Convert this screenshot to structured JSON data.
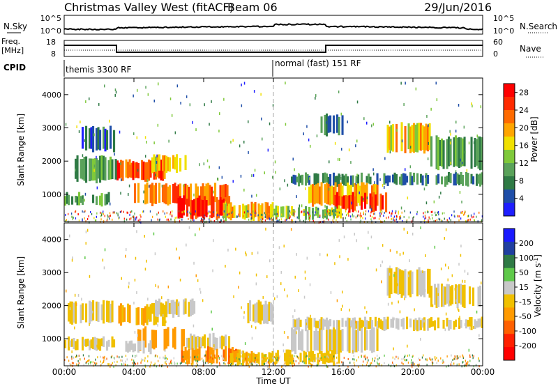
{
  "header": {
    "title": "Christmas Valley West (fitACF)",
    "beam": "Beam 06",
    "date": "29/Jun/2016"
  },
  "nsky_panel": {
    "left_label": "N.Sky",
    "right_label": "N.Search",
    "left_ticks": [
      "10^5",
      "10^0"
    ],
    "right_ticks": [
      "10^5",
      "10^0"
    ]
  },
  "freq_panel": {
    "left_label_1": "Freq.",
    "left_label_2": "[MHz]",
    "right_label": "Nave",
    "left_ticks": [
      "18",
      "8"
    ],
    "right_ticks": [
      "60",
      "0"
    ]
  },
  "cpid": {
    "label": "CPID",
    "segments": [
      {
        "start": 0,
        "end": 12,
        "text": "themis 3300 RF"
      },
      {
        "start": 12,
        "end": 24,
        "text": "normal (fast) 151 RF"
      }
    ]
  },
  "x_axis": {
    "label": "Time UT",
    "ticks": [
      "00:00",
      "04:00",
      "08:00",
      "12:00",
      "16:00",
      "20:00",
      "00:00"
    ]
  },
  "colors": {
    "power": [
      "#1e1eff",
      "#1f4ea8",
      "#2f7a45",
      "#5aa25a",
      "#7fc93a",
      "#f0e000",
      "#ffa500",
      "#ff6a00",
      "#ff2a00",
      "#ff0000"
    ],
    "velocity": [
      "#1a1aff",
      "#203fa0",
      "#2f7a45",
      "#5fc94a",
      "#c8c8c8",
      "#f0c000",
      "#ff9a00",
      "#ff6000",
      "#ff2000",
      "#ff0000"
    ],
    "axis": "#000000",
    "midline": "#aaaaaa"
  },
  "chart_data": [
    {
      "type": "heatmap",
      "title": "",
      "xlabel": "Time UT",
      "ylabel": "Slant Range [km]",
      "xlim": [
        0,
        24
      ],
      "ylim": [
        180,
        4500
      ],
      "yticks": [
        "1000",
        "2000",
        "3000",
        "4000"
      ],
      "colorbar": {
        "label": "Power [dB]",
        "ticks": [
          "4",
          "8",
          "12",
          "16",
          "20",
          "24",
          "28"
        ],
        "range": [
          0,
          30
        ]
      },
      "regions": [
        {
          "t0": 3.0,
          "t1": 5.8,
          "r0": 1450,
          "r1": 2000,
          "value": 24
        },
        {
          "t0": 5.0,
          "t1": 7.0,
          "r0": 1700,
          "r1": 2150,
          "value": 18
        },
        {
          "t0": 0.5,
          "t1": 3.0,
          "r0": 1400,
          "r1": 2100,
          "value": 10
        },
        {
          "t0": 4.0,
          "t1": 9.5,
          "r0": 700,
          "r1": 1300,
          "value": 22
        },
        {
          "t0": 6.5,
          "t1": 9.5,
          "r0": 300,
          "r1": 900,
          "value": 26
        },
        {
          "t0": 9.0,
          "t1": 12.0,
          "r0": 250,
          "r1": 700,
          "value": 18
        },
        {
          "t0": 13.0,
          "t1": 24.0,
          "r0": 1300,
          "r1": 1600,
          "value": 8
        },
        {
          "t0": 14.0,
          "t1": 18.0,
          "r0": 700,
          "r1": 1300,
          "value": 20
        },
        {
          "t0": 15.5,
          "t1": 18.5,
          "r0": 500,
          "r1": 1000,
          "value": 26
        },
        {
          "t0": 12.0,
          "t1": 16.0,
          "r0": 300,
          "r1": 600,
          "value": 14
        },
        {
          "t0": 18.5,
          "t1": 21.0,
          "r0": 2300,
          "r1": 3100,
          "value": 18
        },
        {
          "t0": 21.0,
          "t1": 24.0,
          "r0": 1800,
          "r1": 2700,
          "value": 10
        },
        {
          "t0": 0.0,
          "t1": 3.0,
          "r0": 700,
          "r1": 1000,
          "value": 10
        },
        {
          "t0": 1.0,
          "t1": 3.0,
          "r0": 2300,
          "r1": 3000,
          "value": 6
        },
        {
          "t0": 14.5,
          "t1": 16.0,
          "r0": 2800,
          "r1": 3400,
          "value": 8
        }
      ]
    },
    {
      "type": "heatmap",
      "title": "",
      "xlabel": "Time UT",
      "ylabel": "Slant Range [km]",
      "xlim": [
        0,
        24
      ],
      "ylim": [
        180,
        4500
      ],
      "yticks": [
        "1000",
        "2000",
        "3000",
        "4000"
      ],
      "colorbar": {
        "label": "Velocity [m s^-1]",
        "ticks": [
          "200",
          "100",
          "50",
          "15",
          "-15",
          "-50",
          "-100",
          "-200"
        ],
        "range": [
          -250,
          250
        ]
      },
      "regions": [
        {
          "t0": 3.0,
          "t1": 5.8,
          "r0": 1450,
          "r1": 2000,
          "value": -40
        },
        {
          "t0": 5.0,
          "t1": 7.5,
          "r0": 1700,
          "r1": 2150,
          "value": 0
        },
        {
          "t0": 0.2,
          "t1": 3.0,
          "r0": 1500,
          "r1": 2100,
          "value": 0
        },
        {
          "t0": 4.0,
          "t1": 7.0,
          "r0": 700,
          "r1": 1300,
          "value": -70
        },
        {
          "t0": 3.5,
          "t1": 5.0,
          "r0": 600,
          "r1": 900,
          "value": 30
        },
        {
          "t0": 7.0,
          "t1": 9.5,
          "r0": 700,
          "r1": 1100,
          "value": 0
        },
        {
          "t0": 6.5,
          "t1": 10.0,
          "r0": 300,
          "r1": 700,
          "value": -90
        },
        {
          "t0": 9.5,
          "t1": 12.0,
          "r0": 250,
          "r1": 600,
          "value": -40
        },
        {
          "t0": 13.0,
          "t1": 24.0,
          "r0": 1300,
          "r1": 1600,
          "value": 0
        },
        {
          "t0": 13.0,
          "t1": 18.0,
          "r0": 600,
          "r1": 1300,
          "value": 0
        },
        {
          "t0": 12.0,
          "t1": 16.0,
          "r0": 250,
          "r1": 600,
          "value": -30
        },
        {
          "t0": 18.5,
          "t1": 21.0,
          "r0": 2300,
          "r1": 3100,
          "value": 0
        },
        {
          "t0": 21.0,
          "t1": 24.0,
          "r0": 2000,
          "r1": 2600,
          "value": 0
        },
        {
          "t0": 0.0,
          "t1": 3.0,
          "r0": 700,
          "r1": 1000,
          "value": 0
        },
        {
          "t0": 10.5,
          "t1": 12.0,
          "r0": 1500,
          "r1": 2100,
          "value": 0
        }
      ]
    }
  ]
}
